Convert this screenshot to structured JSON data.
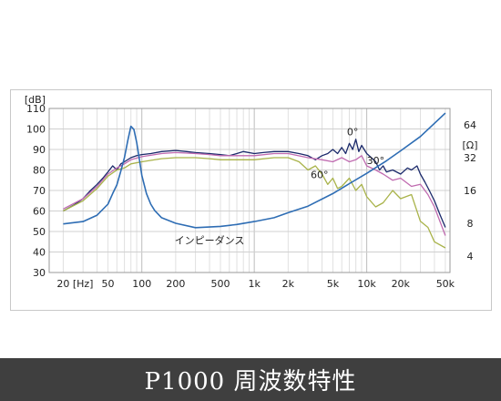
{
  "chart_data": {
    "type": "line",
    "title": "",
    "xlabel": "Hz",
    "ylabel": "dB",
    "ylabel_right": "Ω",
    "x_scale": "log",
    "xlim": [
      15,
      55000
    ],
    "ylim": [
      30,
      110
    ],
    "y2lim": [
      2.83,
      90.5
    ],
    "y2_scale": "log",
    "grid": true,
    "x_tick_labels": [
      "20",
      "[Hz]",
      "50",
      "100",
      "200",
      "500",
      "1k",
      "2k",
      "5k",
      "10k",
      "20k",
      "50k"
    ],
    "x_tick_values": [
      20,
      30,
      50,
      100,
      200,
      500,
      1000,
      2000,
      5000,
      10000,
      20000,
      50000
    ],
    "y_ticks": [
      110,
      100,
      90,
      80,
      70,
      60,
      50,
      40,
      30
    ],
    "y_top_label": "[dB]",
    "y2_ticks": [
      64,
      32,
      16,
      8,
      4
    ],
    "y2_top_label": "[Ω]",
    "series": [
      {
        "name": "0°",
        "color": "#1b2a6b",
        "x": [
          20,
          25,
          30,
          35,
          40,
          45,
          50,
          55,
          60,
          65,
          70,
          80,
          90,
          100,
          120,
          150,
          200,
          250,
          300,
          400,
          500,
          600,
          700,
          800,
          1000,
          1200,
          1500,
          2000,
          2500,
          3000,
          3500,
          4000,
          4500,
          5000,
          5500,
          6000,
          6500,
          7000,
          7500,
          8000,
          8500,
          9000,
          10000,
          11000,
          12000,
          13000,
          14000,
          15000,
          17000,
          20000,
          23000,
          25000,
          28000,
          30000,
          33000,
          36000,
          40000,
          45000,
          50000
        ],
        "y": [
          60,
          63,
          66,
          70,
          73,
          76,
          79,
          82,
          80,
          83,
          84,
          86,
          87,
          87.5,
          88,
          89,
          89.5,
          89,
          88.5,
          88,
          87.5,
          87,
          88,
          89,
          88,
          88.5,
          89,
          89,
          88,
          87,
          85,
          87,
          88,
          90,
          88,
          91,
          88,
          93,
          90,
          95,
          89,
          92,
          88,
          86,
          84,
          80,
          82,
          79,
          80,
          78,
          81,
          80,
          82,
          78,
          74,
          70,
          65,
          58,
          52
        ]
      },
      {
        "name": "30°",
        "color": "#c06bb0",
        "x": [
          20,
          30,
          40,
          50,
          60,
          70,
          80,
          100,
          150,
          200,
          300,
          400,
          500,
          700,
          1000,
          1500,
          2000,
          3000,
          4000,
          5000,
          6000,
          7000,
          8000,
          9000,
          10000,
          12000,
          14000,
          17000,
          20000,
          25000,
          30000,
          35000,
          40000,
          50000
        ],
        "y": [
          61,
          66,
          72,
          78,
          81,
          83,
          85,
          86.5,
          88,
          88.5,
          88,
          87.5,
          87,
          87,
          87,
          88,
          88,
          86,
          85,
          84,
          86,
          84,
          85,
          87,
          82,
          80,
          78,
          75,
          76,
          72,
          73,
          68,
          62,
          48
        ]
      },
      {
        "name": "60°",
        "color": "#a9b34a",
        "x": [
          20,
          30,
          40,
          50,
          60,
          70,
          80,
          100,
          150,
          200,
          300,
          400,
          500,
          700,
          1000,
          1500,
          2000,
          2500,
          3000,
          3500,
          4000,
          4500,
          5000,
          5500,
          6000,
          7000,
          8000,
          9000,
          10000,
          12000,
          14000,
          17000,
          20000,
          25000,
          30000,
          35000,
          40000,
          50000
        ],
        "y": [
          60,
          65,
          71,
          77,
          80,
          81,
          83,
          84,
          85.5,
          86,
          86,
          85.5,
          85,
          85,
          85,
          86,
          86,
          84,
          80,
          82,
          78,
          73,
          76,
          71,
          72,
          76,
          70,
          73,
          67,
          62,
          64,
          70,
          66,
          68,
          55,
          52,
          45,
          42
        ]
      },
      {
        "name": "インピーダンス",
        "color": "#2e6db4",
        "axis": "right",
        "x": [
          20,
          30,
          40,
          50,
          55,
          60,
          65,
          70,
          75,
          80,
          85,
          90,
          95,
          100,
          110,
          120,
          130,
          150,
          200,
          300,
          500,
          700,
          1000,
          1500,
          2000,
          3000,
          5000,
          7000,
          10000,
          15000,
          20000,
          30000,
          50000
        ],
        "y": [
          7.9,
          8.3,
          9.5,
          12,
          15,
          18,
          24,
          32,
          46,
          62,
          58,
          44,
          31,
          22,
          15,
          12,
          10.5,
          9,
          8,
          7.3,
          7.5,
          7.8,
          8.3,
          9,
          10,
          11.5,
          15,
          18.5,
          23,
          30,
          37,
          50,
          82
        ]
      }
    ],
    "annotations": [
      "0°",
      "30°",
      "60°",
      "インピーダンス"
    ]
  },
  "caption": "P1000 周波数特性"
}
